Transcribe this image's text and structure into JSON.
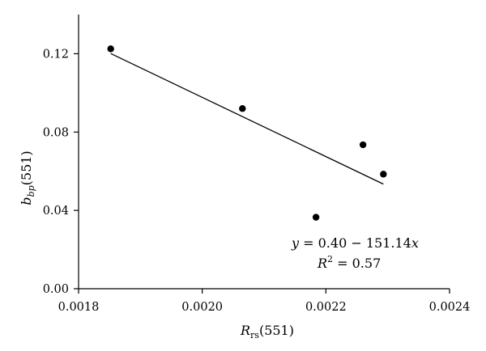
{
  "chart_data": {
    "type": "scatter",
    "x_label": {
      "main": "R",
      "sub": "rs",
      "suffix": "(551)"
    },
    "y_label": {
      "main": "b",
      "sub": "bp",
      "suffix": "(551)"
    },
    "xlim": [
      0.0018,
      0.0024
    ],
    "ylim": [
      0.0,
      0.14
    ],
    "x_ticks": [
      0.0018,
      0.002,
      0.0022,
      0.0024
    ],
    "x_tick_labels": [
      "0.0018",
      "0.0020",
      "0.0022",
      "0.0024"
    ],
    "y_ticks": [
      0.0,
      0.04,
      0.08,
      0.12
    ],
    "y_tick_labels": [
      "0.00",
      "0.04",
      "0.08",
      "0.12"
    ],
    "points": [
      {
        "x": 0.001852,
        "y": 0.1225
      },
      {
        "x": 0.002065,
        "y": 0.092
      },
      {
        "x": 0.002184,
        "y": 0.0365
      },
      {
        "x": 0.00226,
        "y": 0.0735
      },
      {
        "x": 0.002293,
        "y": 0.0585
      }
    ],
    "fit_line": {
      "intercept": 0.4,
      "slope": -151.14,
      "x_range": [
        0.001852,
        0.002293
      ],
      "equation_text": "y = 0.40 − 151.14x",
      "equation_parts": {
        "lhs": "y",
        "middle": " = 0.40 − 151.14",
        "var": "x"
      },
      "r2_parts": {
        "var": "R",
        "exp": "2",
        "rest": " = 0.57"
      }
    }
  }
}
